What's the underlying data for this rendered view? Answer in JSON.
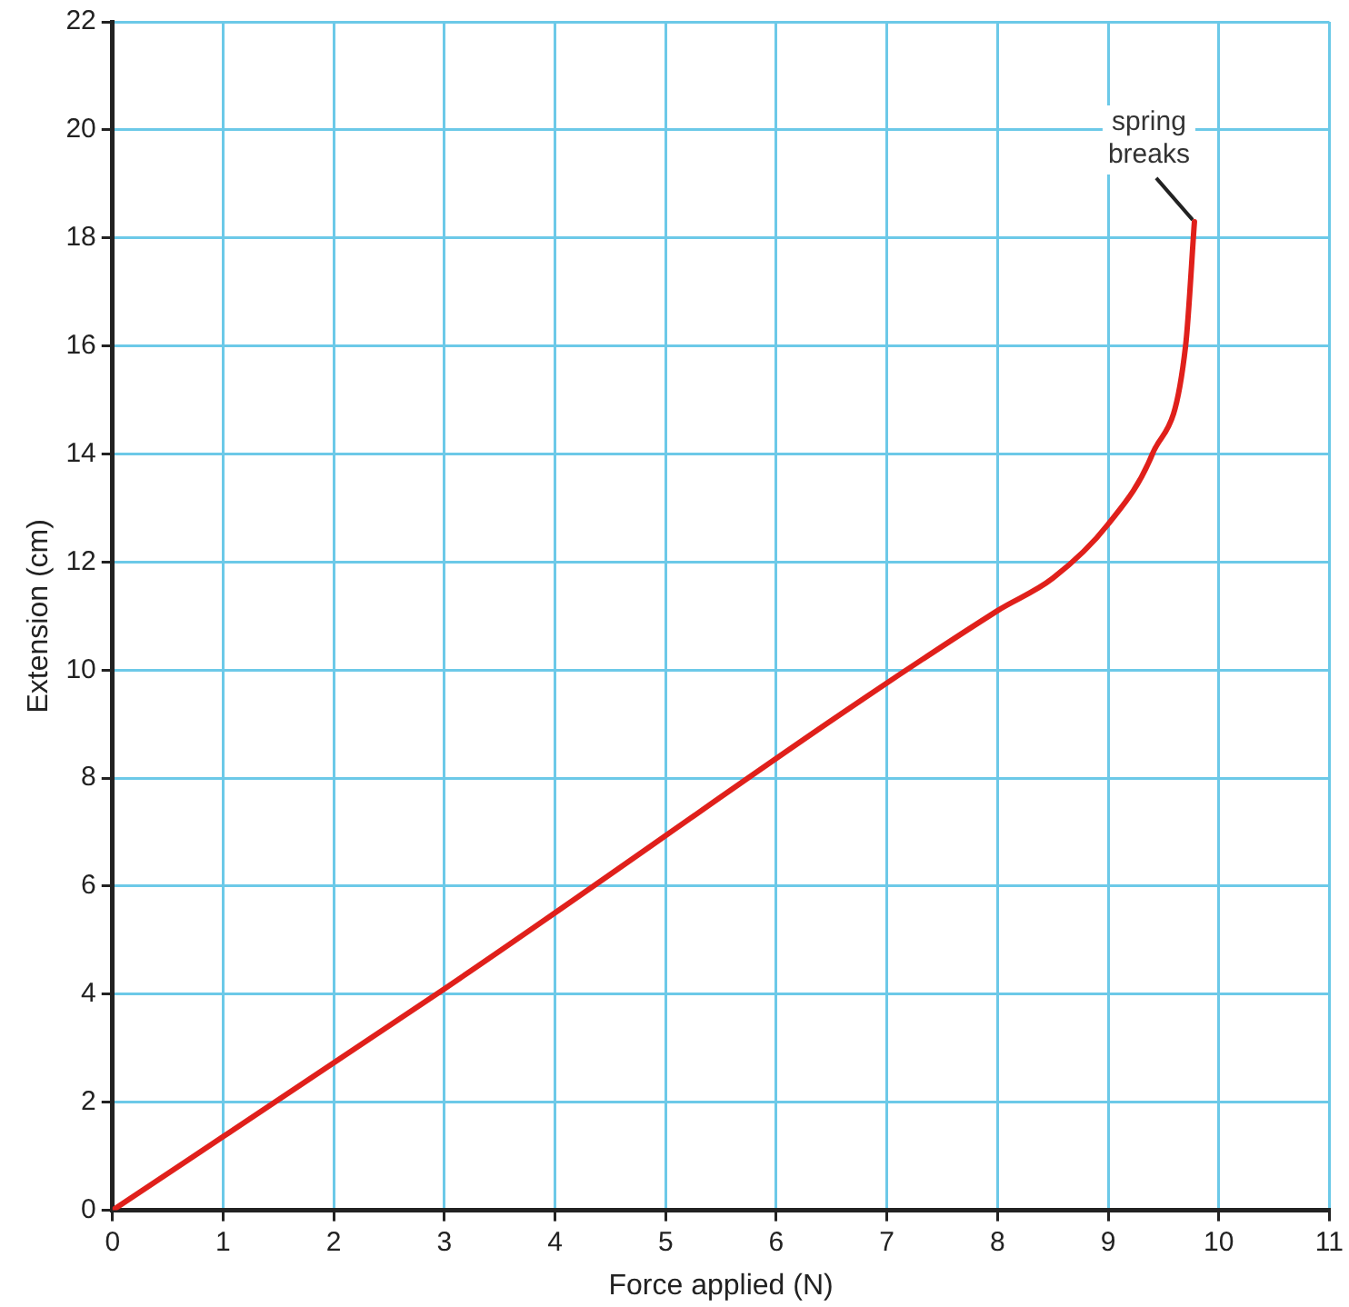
{
  "chart_data": {
    "type": "line",
    "xlabel": "Force applied (N)",
    "ylabel": "Extension (cm)",
    "series": [
      {
        "color": "#e0201b",
        "x": [
          0,
          3,
          8,
          8.5,
          9,
          9.4,
          9.7,
          9.78
        ],
        "values": [
          0,
          4.1,
          11.1,
          11.7,
          12.7,
          14,
          16,
          18.3
        ]
      }
    ],
    "xlim": [
      0,
      11
    ],
    "xticks": [
      0,
      1,
      2,
      3,
      4,
      5,
      6,
      7,
      8,
      9,
      10,
      11
    ],
    "ylim": [
      0,
      22
    ],
    "yticks": [
      0,
      2,
      4,
      6,
      8,
      10,
      12,
      14,
      16,
      18,
      20,
      22
    ],
    "grid": true,
    "legend": false,
    "marker": "none",
    "line_style": "solid",
    "annotations": [
      {
        "text": "spring\nbreaks",
        "x": 9.78,
        "y": 18.3
      }
    ]
  }
}
